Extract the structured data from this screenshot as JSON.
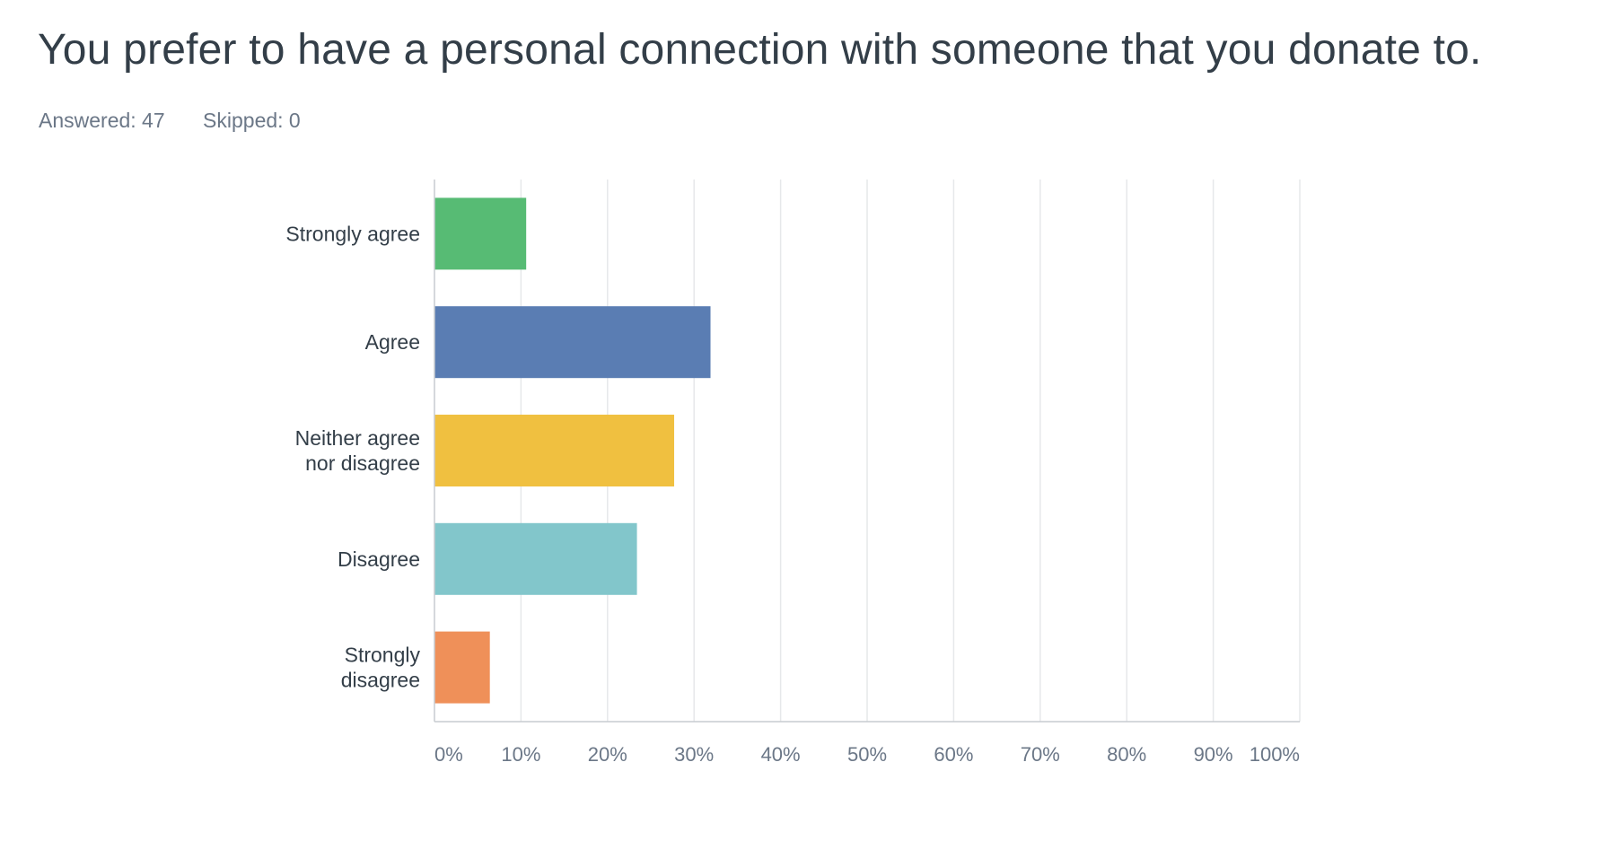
{
  "question": {
    "title": "You prefer to have a personal connection with someone that you donate to.",
    "answered_text": "Answered: 47",
    "skipped_text": "Skipped: 0"
  },
  "chart_data": {
    "type": "bar",
    "orientation": "horizontal",
    "categories": [
      [
        "Strongly agree"
      ],
      [
        "Agree"
      ],
      [
        "Neither agree",
        "nor disagree"
      ],
      [
        "Disagree"
      ],
      [
        "Strongly",
        "disagree"
      ]
    ],
    "values": [
      10.6,
      31.9,
      27.7,
      23.4,
      6.4
    ],
    "colors": [
      "#57bb74",
      "#5a7db3",
      "#f0c040",
      "#82c6cb",
      "#ef9059"
    ],
    "xlim": [
      0,
      100
    ],
    "x_ticks": [
      "0%",
      "10%",
      "20%",
      "30%",
      "40%",
      "50%",
      "60%",
      "70%",
      "80%",
      "90%",
      "100%"
    ],
    "grid": true,
    "legend": "none"
  }
}
